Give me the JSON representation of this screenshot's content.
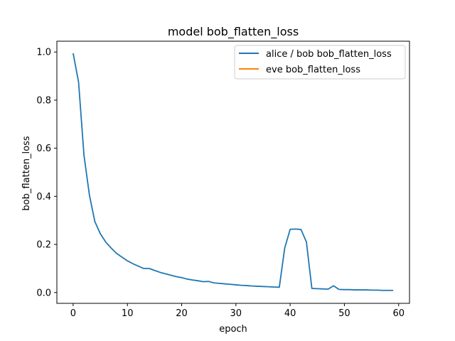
{
  "chart_data": {
    "type": "line",
    "title": "model bob_flatten_loss",
    "xlabel": "epoch",
    "ylabel": "bob_flatten_loss",
    "xlim": [
      -3,
      62
    ],
    "ylim": [
      -0.045,
      1.045
    ],
    "xticks": [
      0,
      10,
      20,
      30,
      40,
      50,
      60
    ],
    "yticks": [
      0.0,
      0.2,
      0.4,
      0.6,
      0.8,
      1.0
    ],
    "xtick_labels": [
      "0",
      "10",
      "20",
      "30",
      "40",
      "50",
      "60"
    ],
    "ytick_labels": [
      "0.0",
      "0.2",
      "0.4",
      "0.6",
      "0.8",
      "1.0"
    ],
    "grid": false,
    "legend_position": "top-right",
    "series": [
      {
        "name": "alice / bob bob_flatten_loss",
        "color": "#1f77b4",
        "x": [
          0,
          1,
          2,
          3,
          4,
          5,
          6,
          7,
          8,
          9,
          10,
          11,
          12,
          13,
          14,
          15,
          16,
          17,
          18,
          19,
          20,
          21,
          22,
          23,
          24,
          25,
          26,
          27,
          28,
          29,
          30,
          31,
          32,
          33,
          34,
          35,
          36,
          37,
          38,
          39,
          40,
          41,
          42,
          43,
          44,
          45,
          46,
          47,
          48,
          49,
          50,
          51,
          52,
          53,
          54,
          55,
          56,
          57,
          58,
          59
        ],
        "values": [
          0.995,
          0.875,
          0.57,
          0.405,
          0.295,
          0.245,
          0.21,
          0.185,
          0.163,
          0.147,
          0.132,
          0.12,
          0.11,
          0.1,
          0.1,
          0.092,
          0.084,
          0.078,
          0.072,
          0.066,
          0.062,
          0.056,
          0.052,
          0.049,
          0.045,
          0.046,
          0.04,
          0.038,
          0.036,
          0.034,
          0.032,
          0.03,
          0.029,
          0.027,
          0.026,
          0.025,
          0.024,
          0.023,
          0.022,
          0.185,
          0.263,
          0.264,
          0.262,
          0.21,
          0.017,
          0.016,
          0.015,
          0.014,
          0.028,
          0.013,
          0.012,
          0.012,
          0.011,
          0.011,
          0.011,
          0.01,
          0.01,
          0.009,
          0.009,
          0.009
        ]
      },
      {
        "name": "eve bob_flatten_loss",
        "color": "#ff7f0e",
        "x": [],
        "values": []
      }
    ]
  }
}
